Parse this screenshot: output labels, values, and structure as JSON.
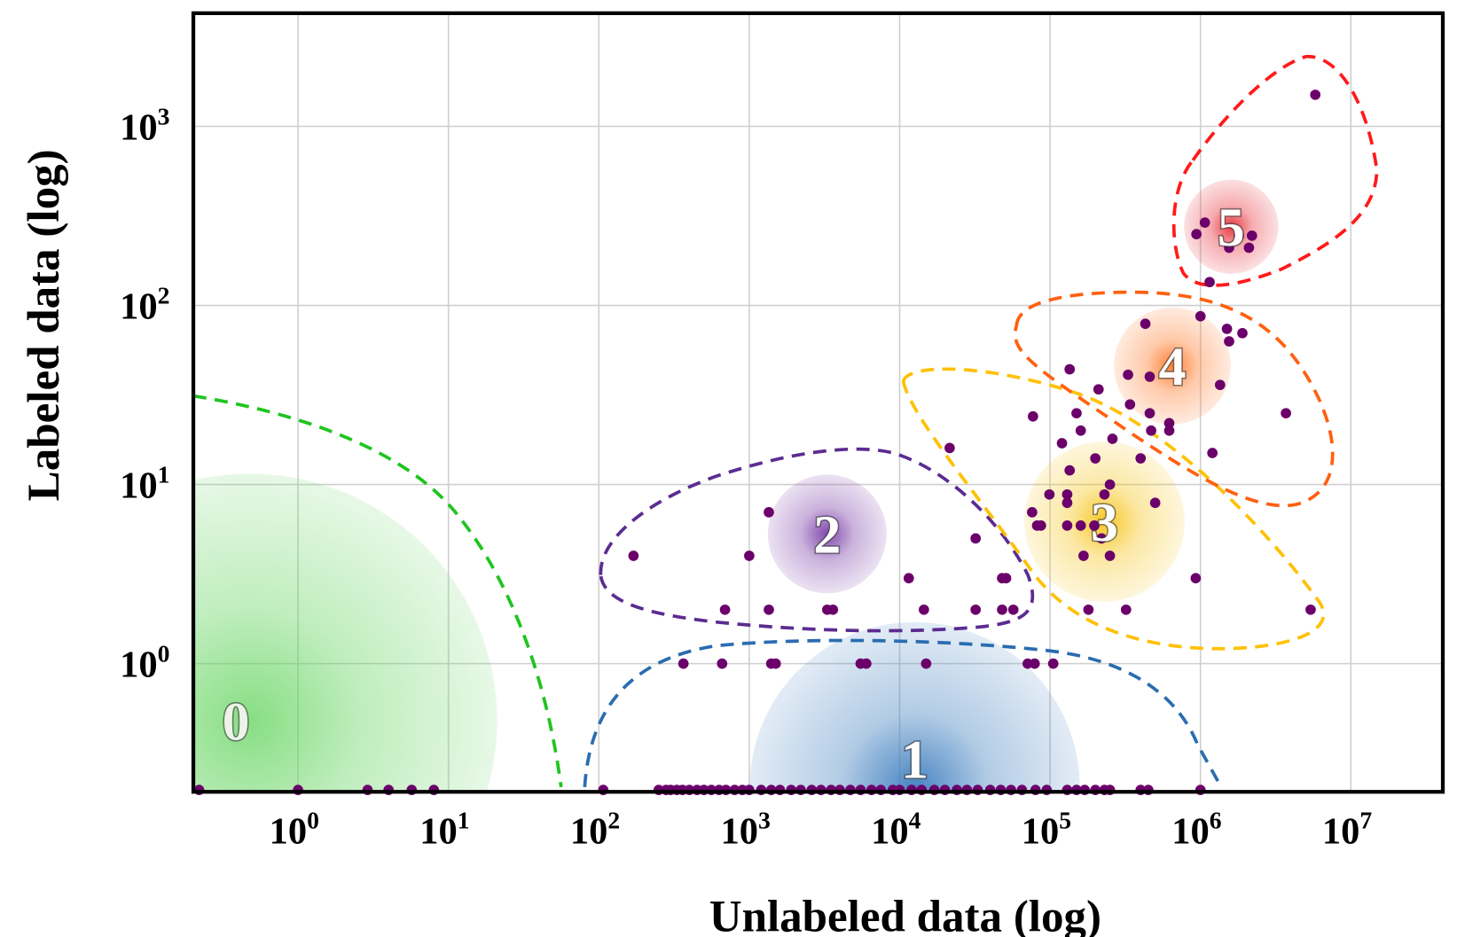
{
  "chart_data": {
    "type": "scatter",
    "title": "",
    "xlabel": "Unlabeled data (log)",
    "ylabel": "Labeled data (log)",
    "x_scale": "log",
    "y_scale": "log",
    "xlim": [
      0.2,
      40000000
    ],
    "ylim": [
      0.19,
      4300
    ],
    "grid": true,
    "x_ticks": [
      {
        "value": 1,
        "base": "10",
        "exp": "0"
      },
      {
        "value": 10,
        "base": "10",
        "exp": "1"
      },
      {
        "value": 100,
        "base": "10",
        "exp": "2"
      },
      {
        "value": 1000,
        "base": "10",
        "exp": "3"
      },
      {
        "value": 10000,
        "base": "10",
        "exp": "4"
      },
      {
        "value": 100000,
        "base": "10",
        "exp": "5"
      },
      {
        "value": 1000000,
        "base": "10",
        "exp": "6"
      },
      {
        "value": 10000000,
        "base": "10",
        "exp": "7"
      }
    ],
    "y_ticks": [
      {
        "value": 1,
        "base": "10",
        "exp": "0"
      },
      {
        "value": 10,
        "base": "10",
        "exp": "1"
      },
      {
        "value": 100,
        "base": "10",
        "exp": "2"
      },
      {
        "value": 1000,
        "base": "10",
        "exp": "3"
      }
    ],
    "point_color": "#6b006b",
    "points": [
      [
        1350,
        7
      ],
      [
        170,
        4
      ],
      [
        1000,
        4
      ],
      [
        11500,
        3
      ],
      [
        32000,
        5
      ],
      [
        48000,
        3
      ],
      [
        51000,
        3
      ],
      [
        930000,
        3
      ],
      [
        690,
        2
      ],
      [
        1350,
        2
      ],
      [
        3300,
        2
      ],
      [
        3600,
        2
      ],
      [
        14500,
        2
      ],
      [
        32000,
        2
      ],
      [
        48000,
        2
      ],
      [
        57000,
        2
      ],
      [
        180000,
        2
      ],
      [
        320000,
        2
      ],
      [
        5400000,
        2
      ],
      [
        365,
        1
      ],
      [
        660,
        1
      ],
      [
        1400,
        1
      ],
      [
        1500,
        1
      ],
      [
        5500,
        1
      ],
      [
        6000,
        1
      ],
      [
        15000,
        1
      ],
      [
        71000,
        1
      ],
      [
        79000,
        1
      ],
      [
        105000,
        1
      ],
      [
        5800000,
        1500
      ],
      [
        1070000,
        290
      ],
      [
        940000,
        250
      ],
      [
        1800000,
        245
      ],
      [
        2200000,
        245
      ],
      [
        1550000,
        210
      ],
      [
        2100000,
        210
      ],
      [
        1150000,
        135
      ],
      [
        1000000,
        87
      ],
      [
        430000,
        79
      ],
      [
        1500000,
        74
      ],
      [
        1900000,
        70
      ],
      [
        1550000,
        63
      ],
      [
        135000,
        44
      ],
      [
        330000,
        41
      ],
      [
        460000,
        40
      ],
      [
        1350000,
        36
      ],
      [
        210000,
        34
      ],
      [
        340000,
        28
      ],
      [
        460000,
        25
      ],
      [
        77000,
        24
      ],
      [
        150000,
        25
      ],
      [
        3700000,
        25
      ],
      [
        620000,
        22
      ],
      [
        620000,
        20
      ],
      [
        470000,
        20
      ],
      [
        160000,
        20
      ],
      [
        260000,
        18
      ],
      [
        120000,
        17
      ],
      [
        21500,
        16
      ],
      [
        1200000,
        15
      ],
      [
        200000,
        14
      ],
      [
        400000,
        14
      ],
      [
        135000,
        12
      ],
      [
        250000,
        10
      ],
      [
        99000,
        8.8
      ],
      [
        130000,
        8.8
      ],
      [
        130000,
        7.9
      ],
      [
        230000,
        8.8
      ],
      [
        500000,
        7.9
      ],
      [
        76000,
        7
      ],
      [
        82000,
        5.9
      ],
      [
        87000,
        5.9
      ],
      [
        130000,
        5.9
      ],
      [
        160000,
        5.9
      ],
      [
        197000,
        5.9
      ],
      [
        220000,
        5
      ],
      [
        167000,
        4
      ],
      [
        250000,
        4
      ],
      [
        0.22,
        0
      ],
      [
        1,
        0
      ],
      [
        2.9,
        0
      ],
      [
        4,
        0
      ],
      [
        5.7,
        0
      ],
      [
        8,
        0
      ],
      [
        107,
        0
      ],
      [
        250,
        0
      ],
      [
        280,
        0
      ],
      [
        300,
        0
      ],
      [
        330,
        0
      ],
      [
        360,
        0
      ],
      [
        400,
        0
      ],
      [
        450,
        0
      ],
      [
        500,
        0
      ],
      [
        560,
        0
      ],
      [
        630,
        0
      ],
      [
        700,
        0
      ],
      [
        800,
        0
      ],
      [
        900,
        0
      ],
      [
        1000,
        0
      ],
      [
        1200,
        0
      ],
      [
        1400,
        0
      ],
      [
        1600,
        0
      ],
      [
        1900,
        0
      ],
      [
        2200,
        0
      ],
      [
        2600,
        0
      ],
      [
        3000,
        0
      ],
      [
        3500,
        0
      ],
      [
        4000,
        0
      ],
      [
        4700,
        0
      ],
      [
        5500,
        0
      ],
      [
        6500,
        0
      ],
      [
        7500,
        0
      ],
      [
        9000,
        0
      ],
      [
        10000,
        0
      ],
      [
        12000,
        0
      ],
      [
        14000,
        0
      ],
      [
        17000,
        0
      ],
      [
        20000,
        0
      ],
      [
        24000,
        0
      ],
      [
        28000,
        0
      ],
      [
        33000,
        0
      ],
      [
        40000,
        0
      ],
      [
        47000,
        0
      ],
      [
        55000,
        0
      ],
      [
        65000,
        0
      ],
      [
        80000,
        0
      ],
      [
        95000,
        0
      ],
      [
        130000,
        0
      ],
      [
        150000,
        0
      ],
      [
        170000,
        0
      ],
      [
        200000,
        0
      ],
      [
        230000,
        0
      ],
      [
        250000,
        0
      ],
      [
        400000,
        0
      ],
      [
        450000,
        0
      ],
      [
        1000000,
        0
      ]
    ],
    "clusters": [
      {
        "label": "0",
        "x": 0.48,
        "y": 0.48,
        "color": "#5fd35a",
        "contour_color": "#1fc41f"
      },
      {
        "label": "1",
        "x": 12600,
        "y": 0.2,
        "color": "#3f7fbf",
        "contour_color": "#2a6db0"
      },
      {
        "label": "2",
        "x": 3300,
        "y": 5.3,
        "color": "#7b3fa8",
        "contour_color": "#5b2c91"
      },
      {
        "label": "3",
        "x": 230000,
        "y": 6.2,
        "color": "#f7c51c",
        "contour_color": "#ffc107"
      },
      {
        "label": "4",
        "x": 650000,
        "y": 46,
        "color": "#ff7a2a",
        "contour_color": "#ff6010"
      },
      {
        "label": "5",
        "x": 1600000,
        "y": 275,
        "color": "#e8303a",
        "contour_color": "#ff1a1a"
      }
    ]
  }
}
